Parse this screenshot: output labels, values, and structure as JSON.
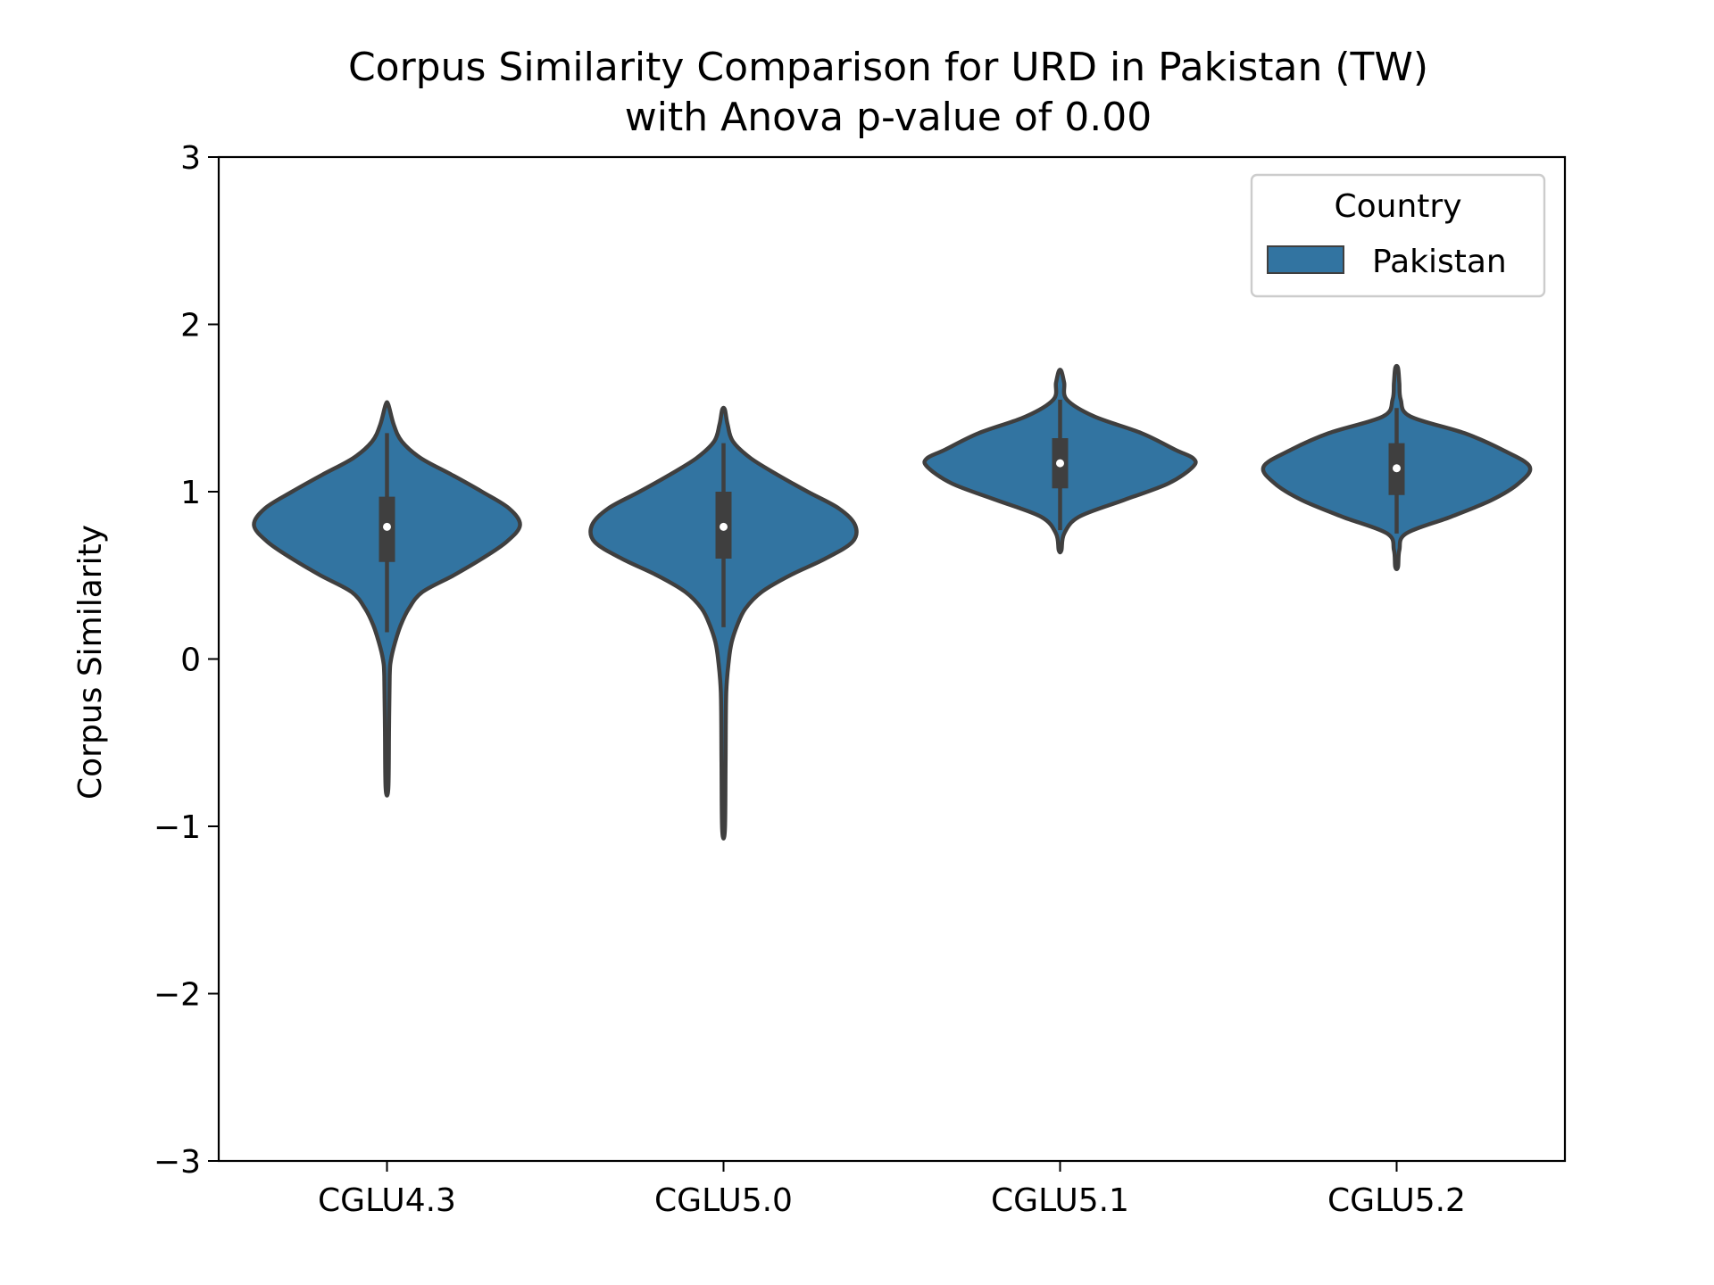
{
  "chart_data": {
    "type": "violin",
    "title": "Corpus Similarity Comparison for URD in Pakistan (TW)",
    "subtitle": "with Anova p-value of 0.00",
    "xlabel": "",
    "ylabel": "Corpus Similarity",
    "ylim": [
      -3,
      3
    ],
    "yticks": [
      3,
      2,
      1,
      0,
      -1,
      -2,
      -3
    ],
    "ytick_labels": [
      "3",
      "2",
      "1",
      "0",
      "−1",
      "−2",
      "−3"
    ],
    "categories": [
      "CGLU4.3",
      "CGLU5.0",
      "CGLU5.1",
      "CGLU5.2"
    ],
    "grid": false,
    "legend": {
      "title": "Country",
      "placement": "top-right",
      "entries": [
        {
          "name": "Pakistan",
          "color": "#3274a1"
        }
      ]
    },
    "series": [
      {
        "name": "Pakistan",
        "color": "#3274a1",
        "violins": [
          {
            "category": "CGLU4.3",
            "min": -0.77,
            "max": 1.52,
            "q1": 0.58,
            "median": 0.79,
            "q3": 0.97,
            "whisker_low": 0.16,
            "whisker_high": 1.35,
            "density": [
              [
                -0.77,
                0.01
              ],
              [
                -0.4,
                0.015
              ],
              [
                -0.1,
                0.02
              ],
              [
                0.0,
                0.03
              ],
              [
                0.1,
                0.06
              ],
              [
                0.2,
                0.1
              ],
              [
                0.3,
                0.16
              ],
              [
                0.4,
                0.26
              ],
              [
                0.5,
                0.49
              ],
              [
                0.6,
                0.7
              ],
              [
                0.7,
                0.88
              ],
              [
                0.8,
                0.98
              ],
              [
                0.9,
                0.9
              ],
              [
                1.0,
                0.7
              ],
              [
                1.1,
                0.48
              ],
              [
                1.2,
                0.25
              ],
              [
                1.3,
                0.11
              ],
              [
                1.4,
                0.05
              ],
              [
                1.52,
                0.01
              ]
            ]
          },
          {
            "category": "CGLU5.0",
            "min": -1.02,
            "max": 1.49,
            "q1": 0.6,
            "median": 0.79,
            "q3": 1.0,
            "whisker_low": 0.19,
            "whisker_high": 1.29,
            "density": [
              [
                -1.02,
                0.01
              ],
              [
                -0.6,
                0.015
              ],
              [
                -0.2,
                0.02
              ],
              [
                0.0,
                0.04
              ],
              [
                0.1,
                0.06
              ],
              [
                0.2,
                0.1
              ],
              [
                0.3,
                0.16
              ],
              [
                0.4,
                0.28
              ],
              [
                0.5,
                0.49
              ],
              [
                0.6,
                0.75
              ],
              [
                0.7,
                0.95
              ],
              [
                0.8,
                0.97
              ],
              [
                0.9,
                0.85
              ],
              [
                1.0,
                0.62
              ],
              [
                1.1,
                0.4
              ],
              [
                1.2,
                0.2
              ],
              [
                1.3,
                0.07
              ],
              [
                1.4,
                0.03
              ],
              [
                1.49,
                0.01
              ]
            ]
          },
          {
            "category": "CGLU5.1",
            "min": 0.65,
            "max": 1.72,
            "q1": 1.02,
            "median": 1.17,
            "q3": 1.32,
            "whisker_low": 0.77,
            "whisker_high": 1.55,
            "density": [
              [
                0.65,
                0.01
              ],
              [
                0.75,
                0.03
              ],
              [
                0.85,
                0.14
              ],
              [
                0.95,
                0.47
              ],
              [
                1.05,
                0.8
              ],
              [
                1.15,
                0.98
              ],
              [
                1.2,
                0.98
              ],
              [
                1.25,
                0.85
              ],
              [
                1.35,
                0.6
              ],
              [
                1.45,
                0.25
              ],
              [
                1.55,
                0.05
              ],
              [
                1.65,
                0.03
              ],
              [
                1.72,
                0.01
              ]
            ]
          },
          {
            "category": "CGLU5.2",
            "min": 0.55,
            "max": 1.74,
            "q1": 0.98,
            "median": 1.14,
            "q3": 1.29,
            "whisker_low": 0.75,
            "whisker_high": 1.5,
            "density": [
              [
                0.55,
                0.01
              ],
              [
                0.65,
                0.02
              ],
              [
                0.75,
                0.07
              ],
              [
                0.85,
                0.4
              ],
              [
                0.95,
                0.7
              ],
              [
                1.05,
                0.9
              ],
              [
                1.15,
                0.98
              ],
              [
                1.25,
                0.78
              ],
              [
                1.35,
                0.5
              ],
              [
                1.45,
                0.1
              ],
              [
                1.55,
                0.03
              ],
              [
                1.65,
                0.02
              ],
              [
                1.74,
                0.01
              ]
            ]
          }
        ]
      }
    ]
  }
}
